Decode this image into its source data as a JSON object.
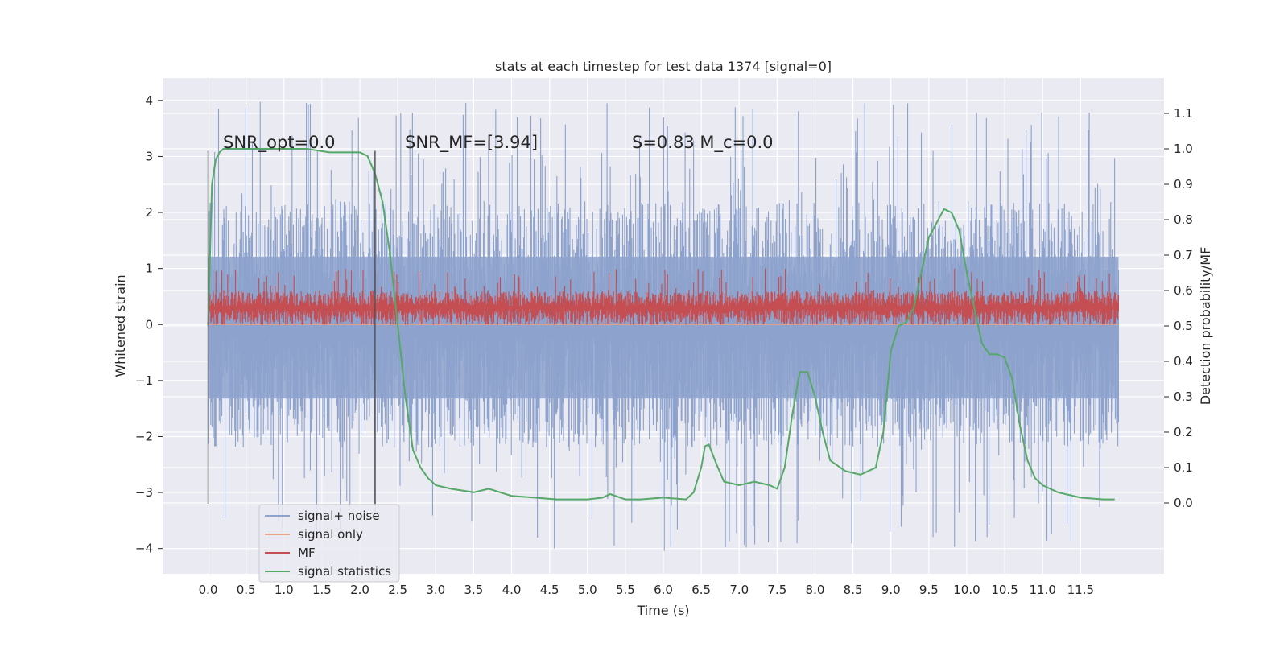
{
  "chart_data": {
    "type": "line",
    "title": "stats at each timestep for test data 1374 [signal=0]",
    "xlabel": "Time (s)",
    "ylabel_left": "Whitened strain",
    "ylabel_right": "Detection probability/MF",
    "xlim": [
      -0.6,
      12.6
    ],
    "ylim_left": [
      -4.45,
      4.4
    ],
    "ylim_right": [
      -0.2,
      1.2
    ],
    "x_ticks": [
      "0.0",
      "0.5",
      "1.0",
      "1.5",
      "2.0",
      "2.5",
      "3.0",
      "3.5",
      "4.0",
      "4.5",
      "5.0",
      "5.5",
      "6.0",
      "6.5",
      "7.0",
      "7.5",
      "8.0",
      "8.5",
      "9.0",
      "9.5",
      "10.0",
      "10.5",
      "11.0",
      "11.5"
    ],
    "y_ticks_left": [
      "4",
      "3",
      "2",
      "1",
      "0",
      "−1",
      "−2",
      "−3",
      "−4"
    ],
    "y_ticks_right": [
      "1.1",
      "1.0",
      "0.9",
      "0.8",
      "0.7",
      "0.6",
      "0.5",
      "0.4",
      "0.3",
      "0.2",
      "0.1",
      "0.0"
    ],
    "grid": true,
    "annotations": [
      {
        "text": "SNR_opt=0.0",
        "x": 0.2,
        "y": 3.15
      },
      {
        "text": "SNR_MF=[3.94]",
        "x": 2.6,
        "y": 3.15
      },
      {
        "text": "S=0.83   M_c=0.0",
        "x": 5.6,
        "y": 3.15
      }
    ],
    "vertical_lines": [
      {
        "x": 0.0,
        "ymin": -3.2,
        "ymax": 3.1
      },
      {
        "x": 2.2,
        "ymin": -3.2,
        "ymax": 3.1
      }
    ],
    "series": [
      {
        "name": "signal+ noise",
        "color": "#8da2cc",
        "axis": "left",
        "kind": "noise",
        "x_range": [
          0.0,
          12.0
        ],
        "typical_range": [
          -2.2,
          2.2
        ],
        "extremes": [
          -4.05,
          4.0
        ]
      },
      {
        "name": "signal only",
        "color": "#e8a285",
        "axis": "left",
        "kind": "flat",
        "value": 0.0
      },
      {
        "name": "MF",
        "color": "#c44e52",
        "axis": "left",
        "kind": "noise",
        "x_range": [
          0.0,
          12.0
        ],
        "typical_range": [
          0.0,
          0.6
        ],
        "extremes": [
          0.0,
          1.0
        ]
      },
      {
        "name": "signal statistics",
        "color": "#55a868",
        "axis": "right",
        "x": [
          0.0,
          0.05,
          0.1,
          0.15,
          0.2,
          0.3,
          0.5,
          0.8,
          1.0,
          1.3,
          1.6,
          1.8,
          2.0,
          2.1,
          2.2,
          2.3,
          2.4,
          2.5,
          2.6,
          2.7,
          2.8,
          2.9,
          3.0,
          3.2,
          3.5,
          3.7,
          4.0,
          4.3,
          4.6,
          5.0,
          5.2,
          5.3,
          5.5,
          5.7,
          6.0,
          6.3,
          6.4,
          6.5,
          6.55,
          6.6,
          6.7,
          6.8,
          7.0,
          7.2,
          7.4,
          7.5,
          7.6,
          7.7,
          7.8,
          7.9,
          8.0,
          8.1,
          8.2,
          8.4,
          8.6,
          8.8,
          8.9,
          9.0,
          9.1,
          9.2,
          9.3,
          9.5,
          9.7,
          9.8,
          9.9,
          10.0,
          10.1,
          10.2,
          10.3,
          10.4,
          10.5,
          10.6,
          10.7,
          10.8,
          10.9,
          11.0,
          11.2,
          11.5,
          11.8,
          11.95
        ],
        "y": [
          0.5,
          0.9,
          0.97,
          0.99,
          1.0,
          1.0,
          1.0,
          1.0,
          1.0,
          1.0,
          0.99,
          0.99,
          0.99,
          0.98,
          0.93,
          0.85,
          0.7,
          0.5,
          0.3,
          0.15,
          0.1,
          0.07,
          0.05,
          0.04,
          0.03,
          0.04,
          0.02,
          0.015,
          0.01,
          0.01,
          0.015,
          0.025,
          0.01,
          0.01,
          0.015,
          0.01,
          0.03,
          0.1,
          0.16,
          0.165,
          0.11,
          0.06,
          0.05,
          0.06,
          0.05,
          0.04,
          0.1,
          0.25,
          0.37,
          0.37,
          0.3,
          0.2,
          0.12,
          0.09,
          0.08,
          0.1,
          0.2,
          0.43,
          0.5,
          0.51,
          0.55,
          0.75,
          0.83,
          0.82,
          0.77,
          0.65,
          0.55,
          0.45,
          0.42,
          0.42,
          0.41,
          0.35,
          0.22,
          0.12,
          0.07,
          0.05,
          0.03,
          0.015,
          0.01,
          0.01
        ]
      }
    ],
    "legend": {
      "location": "lower-left",
      "entries": [
        "signal+ noise",
        "signal only",
        "MF",
        "signal statistics"
      ]
    }
  }
}
